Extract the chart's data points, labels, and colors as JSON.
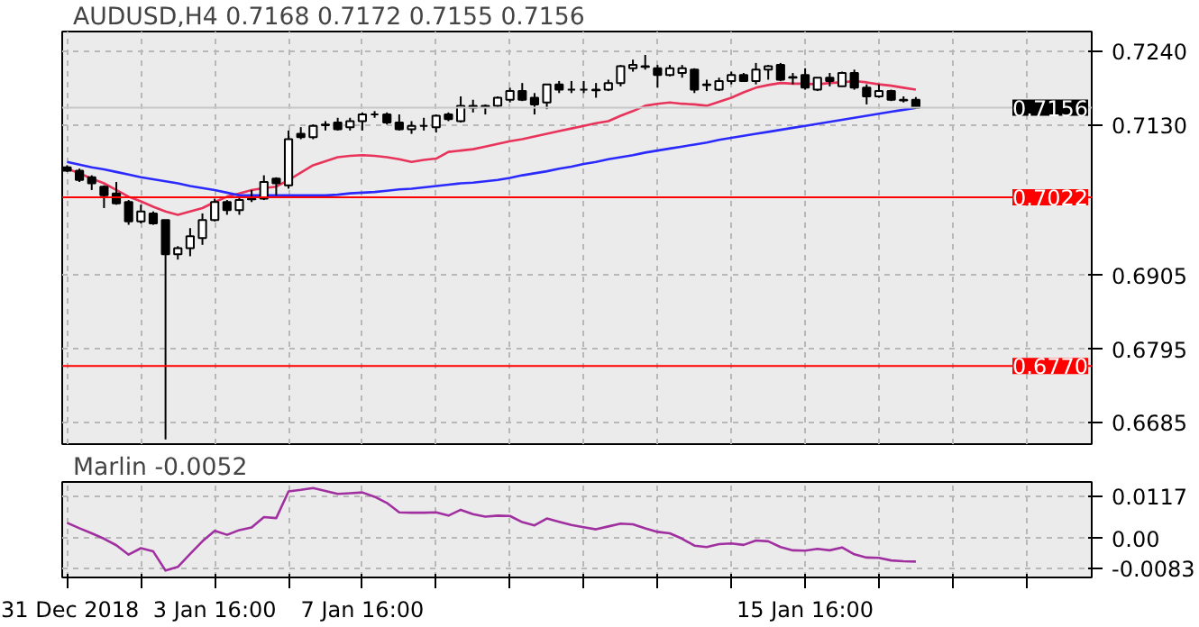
{
  "chart_data": [
    {
      "type": "candlestick",
      "title": "AUDUSD,H4  0.7168 0.7172 0.7155 0.7156",
      "categories": [
        null,
        null,
        null,
        null,
        null,
        null,
        null,
        null,
        null,
        null,
        null,
        null,
        null,
        null,
        null,
        null,
        null,
        null,
        null,
        null,
        null,
        null,
        null,
        null,
        null,
        null,
        null,
        null,
        null,
        null,
        null,
        null,
        null,
        null,
        null,
        null,
        null,
        null,
        null,
        null,
        null,
        null,
        null,
        null,
        null,
        null,
        null,
        null,
        null,
        null,
        null,
        null,
        null,
        null,
        null,
        null,
        null,
        null,
        null,
        null,
        null,
        null,
        null,
        null,
        null,
        null,
        null,
        null,
        null,
        null
      ],
      "ohlc": [
        [
          0.7067,
          0.707,
          0.706,
          0.7062
        ],
        [
          0.7062,
          0.7065,
          0.7045,
          0.7048
        ],
        [
          0.7052,
          0.7055,
          0.7033,
          0.7043
        ],
        [
          0.7038,
          0.704,
          0.7006,
          0.7025
        ],
        [
          0.7028,
          0.7045,
          0.7011,
          0.7013
        ],
        [
          0.7015,
          0.7018,
          0.6981,
          0.6986
        ],
        [
          0.6986,
          0.7011,
          0.6983,
          0.7001
        ],
        [
          0.6998,
          0.7001,
          0.6981,
          0.6983
        ],
        [
          0.6988,
          0.6988,
          0.666,
          0.6937
        ],
        [
          0.6937,
          0.6949,
          0.6929,
          0.6946
        ],
        [
          0.6946,
          0.6976,
          0.6934,
          0.6964
        ],
        [
          0.6961,
          0.6998,
          0.6951,
          0.6988
        ],
        [
          0.6988,
          0.702,
          0.6986,
          0.7015
        ],
        [
          0.7015,
          0.7018,
          0.6996,
          0.7003
        ],
        [
          0.7003,
          0.7023,
          0.6996,
          0.7018
        ],
        [
          0.7019,
          0.7033,
          0.7015,
          0.702
        ],
        [
          0.702,
          0.7055,
          0.7018,
          0.7045
        ],
        [
          0.705,
          0.7052,
          0.7025,
          0.7043
        ],
        [
          0.704,
          0.7122,
          0.7035,
          0.7109
        ],
        [
          0.7117,
          0.7127,
          0.7109,
          0.7112
        ],
        [
          0.7112,
          0.7131,
          0.7109,
          0.7129
        ],
        [
          0.713,
          0.7136,
          0.7122,
          0.7131
        ],
        [
          0.7134,
          0.7141,
          0.7122,
          0.7124
        ],
        [
          0.7127,
          0.7141,
          0.7122,
          0.7136
        ],
        [
          0.7136,
          0.7149,
          0.7122,
          0.7146
        ],
        [
          0.7146,
          0.7151,
          0.7141,
          0.7146
        ],
        [
          0.7146,
          0.7149,
          0.7131,
          0.7134
        ],
        [
          0.7134,
          0.7146,
          0.7122,
          0.7124
        ],
        [
          0.7124,
          0.7136,
          0.7117,
          0.7129
        ],
        [
          0.7129,
          0.7141,
          0.7122,
          0.7129
        ],
        [
          0.7127,
          0.7146,
          0.7119,
          0.7144
        ],
        [
          0.7146,
          0.7149,
          0.7136,
          0.7139
        ],
        [
          0.7136,
          0.7173,
          0.7134,
          0.7159
        ],
        [
          0.7159,
          0.7168,
          0.7149,
          0.7156
        ],
        [
          0.7159,
          0.7161,
          0.7146,
          0.7157
        ],
        [
          0.7159,
          0.7173,
          0.7156,
          0.7171
        ],
        [
          0.7168,
          0.7186,
          0.7164,
          0.7181
        ],
        [
          0.7181,
          0.7193,
          0.7166,
          0.7168
        ],
        [
          0.7171,
          0.7178,
          0.7146,
          0.7161
        ],
        [
          0.7164,
          0.7191,
          0.7154,
          0.7191
        ],
        [
          0.7191,
          0.7196,
          0.7178,
          0.7183
        ],
        [
          0.7183,
          0.7196,
          0.7178,
          0.7183
        ],
        [
          0.7183,
          0.7196,
          0.7178,
          0.7183
        ],
        [
          0.7182,
          0.7193,
          0.7171,
          0.7183
        ],
        [
          0.7183,
          0.7198,
          0.7181,
          0.7193
        ],
        [
          0.7193,
          0.722,
          0.7188,
          0.7218
        ],
        [
          0.7215,
          0.7228,
          0.721,
          0.722
        ],
        [
          0.7218,
          0.7235,
          0.7213,
          0.7217
        ],
        [
          0.7215,
          0.722,
          0.7186,
          0.7205
        ],
        [
          0.7205,
          0.722,
          0.7203,
          0.7215
        ],
        [
          0.7208,
          0.722,
          0.7201,
          0.7215
        ],
        [
          0.7213,
          0.7215,
          0.7178,
          0.7183
        ],
        [
          0.7191,
          0.7198,
          0.7181,
          0.719
        ],
        [
          0.7183,
          0.7201,
          0.7181,
          0.7196
        ],
        [
          0.7196,
          0.721,
          0.7191,
          0.7205
        ],
        [
          0.7205,
          0.7208,
          0.7196,
          0.7196
        ],
        [
          0.7196,
          0.7223,
          0.7191,
          0.7213
        ],
        [
          0.7213,
          0.722,
          0.7198,
          0.7218
        ],
        [
          0.722,
          0.7223,
          0.7196,
          0.7198
        ],
        [
          0.7202,
          0.7208,
          0.7191,
          0.7201
        ],
        [
          0.7205,
          0.7215,
          0.7183,
          0.7186
        ],
        [
          0.7183,
          0.7201,
          0.7181,
          0.7201
        ],
        [
          0.7201,
          0.7208,
          0.7188,
          0.7196
        ],
        [
          0.7188,
          0.721,
          0.7188,
          0.7208
        ],
        [
          0.7208,
          0.7213,
          0.7183,
          0.7186
        ],
        [
          0.7186,
          0.7191,
          0.7161,
          0.7173
        ],
        [
          0.7173,
          0.7191,
          0.7171,
          0.7181
        ],
        [
          0.7181,
          0.7183,
          0.7166,
          0.7168
        ],
        [
          0.7168,
          0.7173,
          0.7164,
          0.7167
        ],
        [
          0.7168,
          0.7172,
          0.7155,
          0.7156
        ]
      ],
      "series": [
        {
          "type": "line",
          "color": "#e8335a",
          "values": [
            0.7065,
            0.7058,
            0.705,
            0.7043,
            0.7033,
            0.7023,
            0.7016,
            0.7008,
            0.7001,
            0.6996,
            0.7001,
            0.7006,
            0.7015,
            0.7023,
            0.7028,
            0.7033,
            0.7036,
            0.7038,
            0.7048,
            0.7059,
            0.707,
            0.7076,
            0.7082,
            0.7084,
            0.7085,
            0.7084,
            0.7082,
            0.7079,
            0.7075,
            0.7078,
            0.708,
            0.709,
            0.7092,
            0.7094,
            0.7098,
            0.7102,
            0.7106,
            0.7109,
            0.7113,
            0.7117,
            0.7121,
            0.7125,
            0.7129,
            0.7133,
            0.7136,
            0.7144,
            0.7151,
            0.7159,
            0.7162,
            0.7164,
            0.7162,
            0.7161,
            0.7159,
            0.7165,
            0.7171,
            0.7179,
            0.7186,
            0.719,
            0.7193,
            0.7192,
            0.7192,
            0.7191,
            0.7193,
            0.7194,
            0.7196,
            0.7194,
            0.7191,
            0.7189,
            0.7186,
            0.7183
          ]
        },
        {
          "type": "line",
          "color": "#2a2aff",
          "values": [
            0.7075,
            0.7071,
            0.7067,
            0.7064,
            0.706,
            0.7056,
            0.7052,
            0.7049,
            0.7046,
            0.7043,
            0.7039,
            0.7036,
            0.7033,
            0.7029,
            0.7025,
            0.7025,
            0.7025,
            0.7025,
            0.7025,
            0.7025,
            0.7025,
            0.7025,
            0.7026,
            0.7028,
            0.7029,
            0.703,
            0.7032,
            0.7034,
            0.7035,
            0.7037,
            0.7039,
            0.7041,
            0.7043,
            0.7044,
            0.7046,
            0.7048,
            0.7051,
            0.7055,
            0.7058,
            0.7061,
            0.7065,
            0.7068,
            0.7072,
            0.7075,
            0.7079,
            0.7082,
            0.7085,
            0.7089,
            0.7092,
            0.7095,
            0.7098,
            0.7101,
            0.7104,
            0.7108,
            0.7111,
            0.7114,
            0.7117,
            0.712,
            0.7123,
            0.7126,
            0.7129,
            0.7132,
            0.7135,
            0.7138,
            0.7141,
            0.7144,
            0.7147,
            0.715,
            0.7153,
            0.7156
          ]
        }
      ],
      "ylim": [
        0.6653,
        0.727
      ],
      "yticks": [
        {
          "value": 0.724,
          "label": "0.7240"
        },
        {
          "value": 0.713,
          "label": "0.7130"
        },
        {
          "value": 0.6905,
          "label": "0.6905"
        },
        {
          "value": 0.6795,
          "label": "0.6795"
        },
        {
          "value": 0.6685,
          "label": "0.6685"
        }
      ],
      "tick_labels": "y",
      "grid": true,
      "ref_lines": [
        {
          "axis": "y",
          "value": 0.7156,
          "label": "0.7156",
          "color": "#c8c8c8"
        },
        {
          "axis": "y",
          "value": 0.7022,
          "label": "0.7022",
          "color": "#ff0000"
        },
        {
          "axis": "y",
          "value": 0.677,
          "label": "0.6770",
          "color": "#ff0000"
        }
      ]
    },
    {
      "type": "line",
      "title": "Marlin -0.0052",
      "categories": [
        "31 Dec 2018",
        null,
        null,
        null,
        null,
        null,
        null,
        null,
        null,
        null,
        null,
        null,
        "3 Jan 16:00",
        null,
        null,
        null,
        null,
        null,
        null,
        null,
        null,
        null,
        null,
        null,
        "7 Jan 16:00",
        null,
        null,
        null,
        null,
        null,
        null,
        null,
        null,
        null,
        null,
        null,
        null,
        null,
        null,
        null,
        null,
        null,
        null,
        null,
        null,
        null,
        null,
        null,
        null,
        null,
        null,
        null,
        null,
        null,
        null,
        null,
        null,
        null,
        null,
        null,
        "15 Jan 16:00",
        null,
        null,
        null,
        null,
        null,
        null,
        null,
        null,
        null
      ],
      "series": [
        {
          "color": "#a030a0",
          "values": [
            0.0043,
            0.0028,
            0.0014,
            -0.0001,
            -0.0019,
            -0.0045,
            -0.0027,
            -0.0036,
            -0.0089,
            -0.0079,
            -0.0043,
            -0.0008,
            0.0021,
            0.001,
            0.0023,
            0.003,
            0.0059,
            0.0056,
            0.013,
            0.0134,
            0.0139,
            0.0131,
            0.0123,
            0.0125,
            0.0127,
            0.0115,
            0.0098,
            0.0072,
            0.0071,
            0.0071,
            0.0072,
            0.0063,
            0.0079,
            0.0067,
            0.006,
            0.0063,
            0.0062,
            0.0045,
            0.0036,
            0.0055,
            0.0046,
            0.0037,
            0.0031,
            0.0025,
            0.0033,
            0.0041,
            0.0039,
            0.0028,
            0.0018,
            0.0014,
            -0.0001,
            -0.002,
            -0.0024,
            -0.0016,
            -0.0014,
            -0.0018,
            -0.0006,
            -0.0008,
            -0.0024,
            -0.0033,
            -0.0034,
            -0.0029,
            -0.0033,
            -0.0025,
            -0.0044,
            -0.0053,
            -0.0054,
            -0.0061,
            -0.0063,
            -0.0064
          ]
        }
      ],
      "ylim": [
        -0.0108,
        0.0156
      ],
      "yticks": [
        {
          "value": 0.0117,
          "label": "0.0117"
        },
        {
          "value": 0,
          "label": "0.00"
        },
        {
          "value": -0.0083,
          "label": "-0.0083"
        }
      ],
      "grid": true
    }
  ]
}
